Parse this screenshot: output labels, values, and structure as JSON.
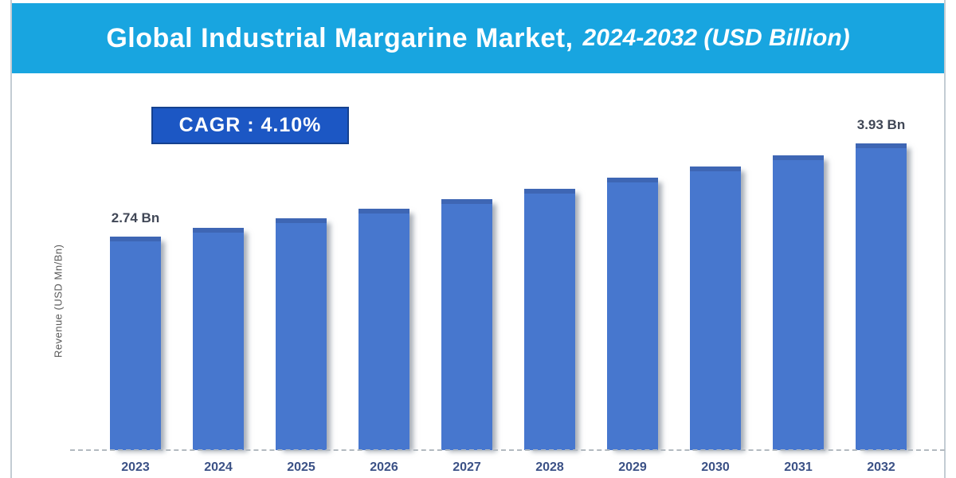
{
  "header": {
    "title_main": "Global Industrial Margarine Market,",
    "title_sub": "2024-2032 (USD Billion)"
  },
  "cagr_badge": {
    "label": "CAGR : 4.10%"
  },
  "chart_data": {
    "type": "bar",
    "title": "Global Industrial Margarine Market, 2024-2032 (USD Billion)",
    "ylabel": "Revenue (USD Mn/Bn)",
    "xlabel": "",
    "categories": [
      "2023",
      "2024",
      "2025",
      "2026",
      "2027",
      "2028",
      "2029",
      "2030",
      "2031",
      "2032"
    ],
    "values": [
      2.74,
      2.85,
      2.97,
      3.09,
      3.22,
      3.35,
      3.49,
      3.63,
      3.78,
      3.93
    ],
    "unit": "USD Billion",
    "cagr_percent": "4.10%",
    "bar_labels": {
      "0": "2.74 Bn",
      "9": "3.93 Bn"
    },
    "ylim": [
      0,
      4.1
    ],
    "grid": false,
    "legend": false
  },
  "colors": {
    "header_bg": "#18a5e0",
    "badge_bg": "#1c57c4",
    "badge_border": "#15418f",
    "bar_fill": "#4777ce",
    "bar_top_edge": "#3e66b4",
    "axis_dash": "#b3bac0",
    "tick_text": "#3b5186",
    "value_label_text": "#404756",
    "ylabel_text": "#595959"
  }
}
